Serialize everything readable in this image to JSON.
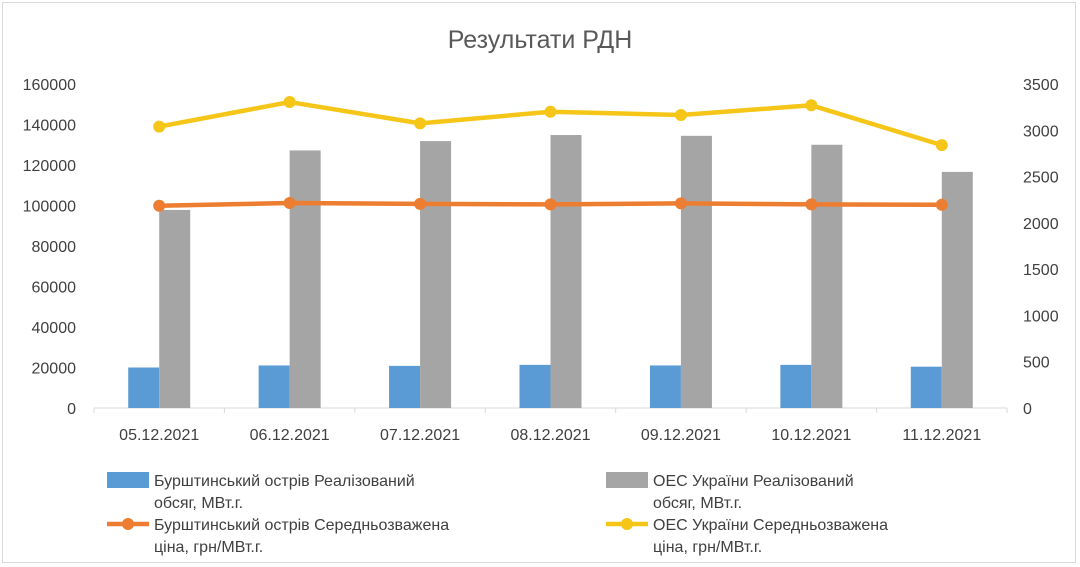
{
  "chart_data": {
    "type": "bar",
    "title": "Результати РДН",
    "categories": [
      "05.12.2021",
      "06.12.2021",
      "07.12.2021",
      "08.12.2021",
      "09.12.2021",
      "10.12.2021",
      "11.12.2021"
    ],
    "ylim": [
      0,
      160000
    ],
    "y_ticks": [
      "0",
      "20000",
      "40000",
      "60000",
      "80000",
      "100000",
      "120000",
      "140000",
      "160000"
    ],
    "y2lim": [
      0,
      3500
    ],
    "y2_ticks": [
      "0",
      "500",
      "1000",
      "1500",
      "2000",
      "2500",
      "3000",
      "3500"
    ],
    "grid": false,
    "legend_position": "bottom",
    "series": [
      {
        "name": "Бурштинський острів Реалізований обсяг, МВт.г.",
        "type": "bar",
        "axis": "left",
        "color": "#5b9bd5",
        "values": [
          20000,
          21000,
          20800,
          21300,
          21000,
          21300,
          20400
        ]
      },
      {
        "name": "ОЕС України Реалізований обсяг, МВт.г.",
        "type": "bar",
        "axis": "left",
        "color": "#a5a5a5",
        "values": [
          97800,
          127200,
          131800,
          134800,
          134400,
          130000,
          116600
        ]
      },
      {
        "name": "Бурштинський острів Середньозважена ціна, грн/МВт.г.",
        "type": "line",
        "axis": "right",
        "color": "#ed7d31",
        "values": [
          2185,
          2215,
          2205,
          2200,
          2210,
          2200,
          2195
        ]
      },
      {
        "name": "ОЕС України Середньозважена ціна, грн/МВт.г.",
        "type": "line",
        "axis": "right",
        "color": "#f5c518",
        "values": [
          3040,
          3305,
          3075,
          3200,
          3165,
          3270,
          2840
        ]
      }
    ]
  }
}
